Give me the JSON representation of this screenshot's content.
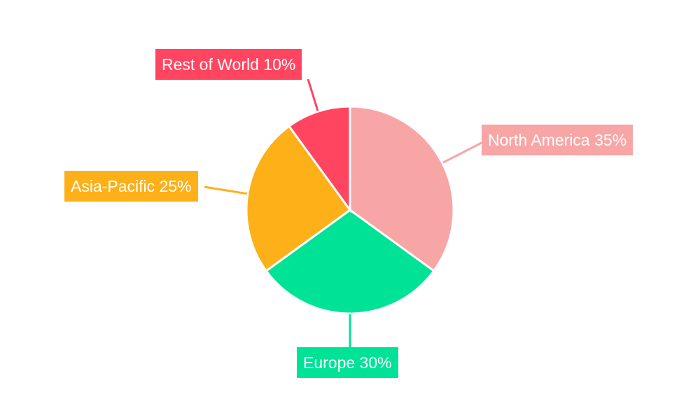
{
  "chart_data": {
    "type": "pie",
    "title": "",
    "start_angle": "top, clockwise",
    "legend": "none",
    "slices": [
      {
        "name": "North America",
        "value": 35,
        "label": "North America 35%",
        "color": "#F8A5A6"
      },
      {
        "name": "Europe",
        "value": 30,
        "label": "Europe 30%",
        "color": "#00E396"
      },
      {
        "name": "Asia-Pacific",
        "value": 25,
        "label": "Asia-Pacific 25%",
        "color": "#FEB019"
      },
      {
        "name": "Rest of World",
        "value": 10,
        "label": "Rest of World 10%",
        "color": "#FF4560"
      }
    ]
  }
}
